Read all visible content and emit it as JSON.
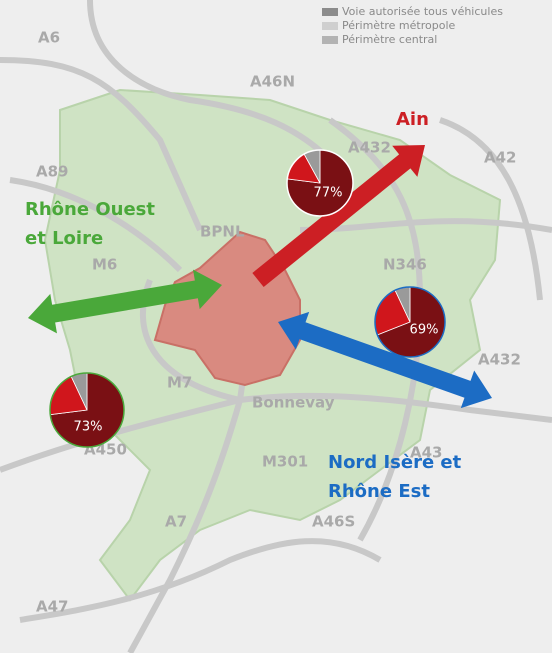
{
  "legend": [
    {
      "label": "Voie autorisée tous véhicules",
      "color": "#8c8c8c"
    },
    {
      "label": "Périmètre métropole",
      "color": "#cfcfcf"
    },
    {
      "label": "Périmètre central",
      "color": "#b3b3b3"
    }
  ],
  "roads": [
    "A6",
    "A46N",
    "A432",
    "A42",
    "A89",
    "BPNL",
    "M6",
    "N346",
    "A432",
    "M7",
    "Bonnevay",
    "A450",
    "A43",
    "M301",
    "A7",
    "A46S",
    "A47"
  ],
  "flows": [
    {
      "lines": [
        "Ain"
      ],
      "color": "#cc1f24"
    },
    {
      "lines": [
        "Rhône Ouest",
        "et Loire"
      ],
      "color": "#4aa83a"
    },
    {
      "lines": [
        "Nord Isère et",
        "Rhône Est"
      ],
      "color": "#1c6cc4"
    }
  ],
  "pies": [
    {
      "label": "77%",
      "values": [
        77,
        15,
        8
      ],
      "colors": [
        "#7a1014",
        "#d0161c",
        "#9a9a9a"
      ]
    },
    {
      "label": "69%",
      "values": [
        69,
        24,
        7
      ],
      "colors": [
        "#7a1014",
        "#d0161c",
        "#9a9a9a"
      ]
    },
    {
      "label": "73%",
      "values": [
        73,
        20,
        7
      ],
      "colors": [
        "#7a1014",
        "#d0161c",
        "#9a9a9a"
      ]
    }
  ]
}
